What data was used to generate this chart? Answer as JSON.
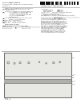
{
  "page_bg": "#ffffff",
  "text_color": "#444444",
  "barcode_color": "#111111",
  "diagram_bg": "#e8e8e4",
  "diagram_border_color": "#666666",
  "diagram_line_color": "#888888",
  "circle_color": "#777777",
  "label_color": "#555555",
  "divider_color": "#999999",
  "header_bg": "#ffffff",
  "band_color": "#b0b0aa"
}
